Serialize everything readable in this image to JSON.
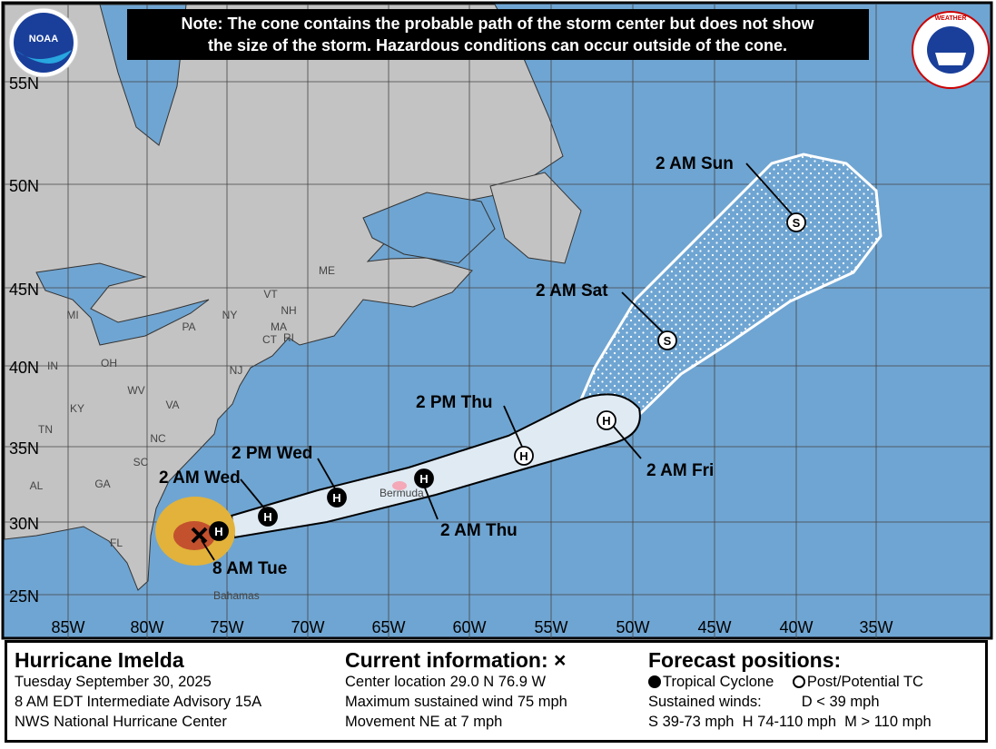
{
  "note": {
    "line1": "Note: The cone contains the probable path of the storm center but does not show",
    "line2": "the size of the storm. Hazardous conditions can occur outside of the cone."
  },
  "logos": {
    "left": "NOAA",
    "right": "NATIONAL WEATHER SERVICE"
  },
  "colors": {
    "ocean": "#6fa5d2",
    "land": "#c3c3c3",
    "cone": "#dfeaf3",
    "hurricane_wind": "#c3512e",
    "ts_wind": "#e2b23a",
    "note_bg": "#000000"
  },
  "axes": {
    "lat_labels": [
      "55N",
      "50N",
      "45N",
      "40N",
      "35N",
      "30N",
      "25N"
    ],
    "lon_labels": [
      "85W",
      "80W",
      "75W",
      "70W",
      "65W",
      "60W",
      "55W",
      "50W",
      "45W",
      "40W",
      "35W"
    ]
  },
  "places": {
    "states": [
      "ME",
      "VT",
      "NH",
      "NY",
      "MA",
      "CT",
      "RI",
      "PA",
      "NJ",
      "MI",
      "OH",
      "IN",
      "WV",
      "VA",
      "KY",
      "TN",
      "NC",
      "SC",
      "GA",
      "AL",
      "FL"
    ],
    "bermuda": "Bermuda",
    "bahamas": "Bahamas"
  },
  "track": {
    "current": {
      "label": "8 AM Tue",
      "icon": "x-mark",
      "lat": 29.0,
      "lon": -76.9
    },
    "forecast": [
      {
        "label": "2 AM Wed",
        "type": "H",
        "status": "tropical-cyclone"
      },
      {
        "label": "2 PM Wed",
        "type": "H",
        "status": "tropical-cyclone"
      },
      {
        "label": "2 AM Thu",
        "type": "H",
        "status": "tropical-cyclone"
      },
      {
        "label": "2 PM Thu",
        "type": "H",
        "status": "post-potential"
      },
      {
        "label": "2 AM Fri",
        "type": "H",
        "status": "post-potential"
      },
      {
        "label": "2 AM Sat",
        "type": "S",
        "status": "post-potential"
      },
      {
        "label": "2 AM Sun",
        "type": "S",
        "status": "post-potential"
      }
    ],
    "first_point": "H"
  },
  "legend": {
    "storm_name": "Hurricane Imelda",
    "date": "Tuesday September 30, 2025",
    "advisory": "8 AM EDT Intermediate Advisory 15A",
    "center": "NWS National Hurricane Center",
    "current_title": "Current information: ",
    "current_mark": "×",
    "location": "Center location 29.0 N 76.9 W",
    "wind": "Maximum sustained wind 75 mph",
    "movement": "Movement NE at 7 mph",
    "forecast_title": "Forecast positions:",
    "tc": "Tropical Cyclone",
    "ptc": "Post/Potential TC",
    "sustained": "Sustained winds:",
    "d": "D < 39 mph",
    "s": "S 39-73 mph",
    "h": "H 74-110 mph",
    "m": "M > 110 mph"
  }
}
